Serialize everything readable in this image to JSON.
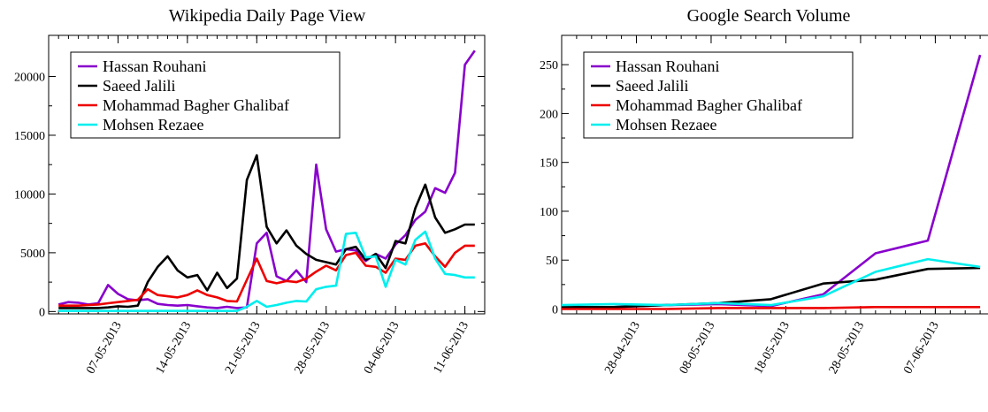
{
  "colors": {
    "hassan": "#8800cc",
    "jalili": "#000000",
    "ghalibaf": "#ee0000",
    "rezaee": "#00eeee"
  },
  "chart_data": [
    {
      "type": "line",
      "title": "Wikipedia Daily Page View",
      "xlabel": "",
      "ylabel": "",
      "x_kind": "date",
      "x_ticks": [
        "07-05-2013",
        "14-05-2013",
        "21-05-2013",
        "28-05-2013",
        "04-06-2013",
        "11-06-2013"
      ],
      "xlim": [
        "2013-04-30",
        "2013-06-13"
      ],
      "ylim": [
        -200,
        23500
      ],
      "y_ticks": [
        0,
        5000,
        10000,
        15000,
        20000
      ],
      "grid": false,
      "legend_position": "top-left",
      "x": [
        "2013-05-01",
        "2013-05-02",
        "2013-05-03",
        "2013-05-04",
        "2013-05-05",
        "2013-05-06",
        "2013-05-07",
        "2013-05-08",
        "2013-05-09",
        "2013-05-10",
        "2013-05-11",
        "2013-05-12",
        "2013-05-13",
        "2013-05-14",
        "2013-05-15",
        "2013-05-16",
        "2013-05-17",
        "2013-05-18",
        "2013-05-19",
        "2013-05-20",
        "2013-05-21",
        "2013-05-22",
        "2013-05-23",
        "2013-05-24",
        "2013-05-25",
        "2013-05-26",
        "2013-05-27",
        "2013-05-28",
        "2013-05-29",
        "2013-05-30",
        "2013-05-31",
        "2013-06-01",
        "2013-06-02",
        "2013-06-03",
        "2013-06-04",
        "2013-06-05",
        "2013-06-06",
        "2013-06-07",
        "2013-06-08",
        "2013-06-09",
        "2013-06-10",
        "2013-06-11",
        "2013-06-12"
      ],
      "series": [
        {
          "name": "Hassan Rouhani",
          "color_key": "hassan",
          "values": [
            600,
            800,
            750,
            600,
            700,
            2250,
            1500,
            1050,
            950,
            1050,
            650,
            550,
            500,
            550,
            450,
            350,
            300,
            400,
            300,
            350,
            5800,
            6700,
            3000,
            2600,
            3500,
            2500,
            12500,
            7000,
            5100,
            5300,
            5200,
            4300,
            4900,
            4500,
            5700,
            6500,
            7800,
            8500,
            10500,
            10100,
            11800,
            21000,
            22200
          ]
        },
        {
          "name": "Saeed Jalili",
          "color_key": "jalili",
          "values": [
            300,
            300,
            300,
            300,
            300,
            350,
            450,
            400,
            500,
            2500,
            3800,
            4700,
            3500,
            2900,
            3100,
            1800,
            3300,
            2000,
            2800,
            11200,
            13300,
            7200,
            5800,
            6900,
            5600,
            4900,
            4400,
            4200,
            4000,
            5300,
            5500,
            4400,
            4900,
            3700,
            6000,
            5800,
            8800,
            10800,
            8000,
            6700,
            7000,
            7400,
            7400
          ]
        },
        {
          "name": "Mohammad Bagher Ghalibaf",
          "color_key": "ghalibaf",
          "values": [
            500,
            500,
            500,
            550,
            600,
            700,
            800,
            900,
            1000,
            1900,
            1400,
            1300,
            1200,
            1400,
            1800,
            1400,
            1200,
            900,
            850,
            2700,
            4500,
            2600,
            2400,
            2600,
            2500,
            2800,
            3400,
            3900,
            3500,
            4800,
            5000,
            3900,
            3800,
            3300,
            4500,
            4400,
            5600,
            5800,
            4700,
            3800,
            5000,
            5600,
            5600
          ]
        },
        {
          "name": "Mohsen Rezaee",
          "color_key": "rezaee",
          "values": [
            50,
            50,
            50,
            50,
            50,
            50,
            50,
            50,
            50,
            50,
            50,
            50,
            50,
            50,
            50,
            50,
            50,
            50,
            50,
            400,
            900,
            400,
            550,
            750,
            900,
            850,
            1900,
            2100,
            2200,
            6600,
            6700,
            4600,
            4700,
            2100,
            4400,
            4000,
            6100,
            6800,
            4500,
            3200,
            3100,
            2900,
            2900
          ]
        }
      ]
    },
    {
      "type": "line",
      "title": "Google Search Volume",
      "xlabel": "",
      "ylabel": "",
      "x_kind": "date",
      "x_ticks": [
        "28-04-2013",
        "08-05-2013",
        "18-05-2013",
        "28-05-2013",
        "07-06-2013"
      ],
      "xlim": [
        "2013-04-18",
        "2013-06-15"
      ],
      "ylim": [
        -5,
        280
      ],
      "y_ticks": [
        0,
        50,
        100,
        150,
        200,
        250
      ],
      "grid": false,
      "legend_position": "top-left",
      "x": [
        "2013-04-18",
        "2013-04-25",
        "2013-05-02",
        "2013-05-09",
        "2013-05-16",
        "2013-05-23",
        "2013-05-30",
        "2013-06-06",
        "2013-06-13"
      ],
      "series": [
        {
          "name": "Hassan Rouhani",
          "color_key": "hassan",
          "values": [
            2,
            2,
            4,
            5,
            3,
            15,
            57,
            70,
            260
          ]
        },
        {
          "name": "Saeed Jalili",
          "color_key": "jalili",
          "values": [
            2,
            2,
            4,
            6,
            10,
            26,
            30,
            41,
            42
          ]
        },
        {
          "name": "Mohammad Bagher Ghalibaf",
          "color_key": "ghalibaf",
          "values": [
            0,
            0,
            0,
            1,
            1,
            1,
            2,
            2,
            2
          ]
        },
        {
          "name": "Mohsen Rezaee",
          "color_key": "rezaee",
          "values": [
            4,
            5,
            4,
            6,
            4,
            13,
            38,
            51,
            43
          ]
        }
      ]
    }
  ]
}
